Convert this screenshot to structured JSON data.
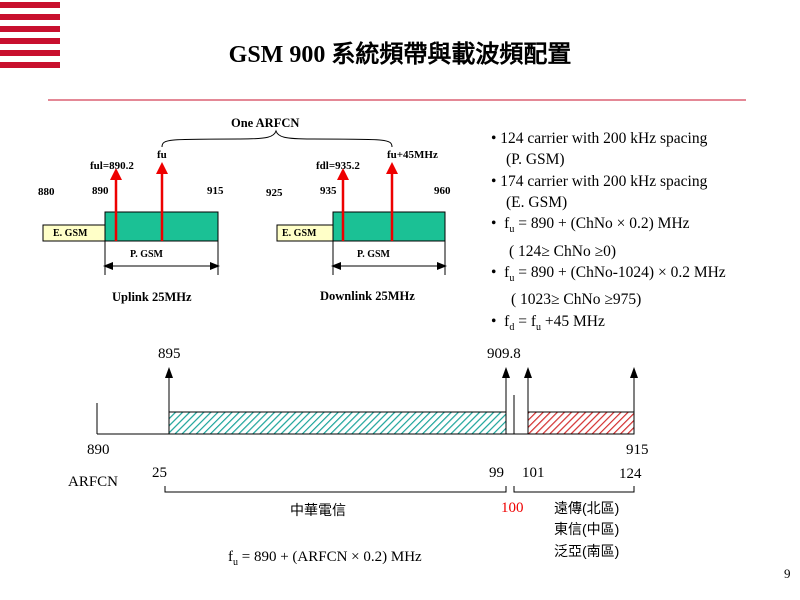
{
  "title": "GSM 900 系統頻帶與載波頻配置",
  "one_arfcn": "One ARFCN",
  "uplink": {
    "ful_label": "ful=890.2",
    "fu_label": "fu",
    "tick_880": "880",
    "tick_890": "890",
    "tick_915": "915",
    "egsm_label": "E. GSM",
    "pgsm_label": "P. GSM",
    "caption": "Uplink 25MHz"
  },
  "downlink": {
    "fdl_label": "fdl=935.2",
    "fu45_label": "fu+45MHz",
    "tick_925": "925",
    "tick_935": "935",
    "tick_960": "960",
    "egsm_label": "E. GSM",
    "pgsm_label": "P. GSM",
    "caption": "Downlink 25MHz"
  },
  "bullets": {
    "0": "• 124 carrier with 200 kHz spacing",
    "1": "(P. GSM)",
    "2": "• 174 carrier with 200 kHz spacing",
    "3": "(E. GSM)",
    "4_sub": "u",
    "4": " = 890 + (ChNo × 0.2) MHz",
    "5": "( 124≥ ChNo ≥0)",
    "6_sub": "u",
    "6": " = 890 + (ChNo-1024) × 0.2 MHz",
    "7": "( 1023≥ ChNo ≥975)",
    "8_sub": "d",
    "8": " = f",
    "9_sub": "u",
    "9": " +45 MHz"
  },
  "arfcn": {
    "freq_895": "895",
    "freq_909_8": "909.8",
    "freq_890": "890",
    "freq_915": "915",
    "label": "ARFCN",
    "ch_25": "25",
    "ch_99": "99",
    "ch_101": "101",
    "ch_124": "124",
    "ch_100": "100",
    "cht": "中華電信",
    "operators": [
      "遠傳(北區)",
      "東信(中區)",
      "泛亞(南區)"
    ]
  },
  "formula_sub": "u",
  "formula": " = 890 + (ARFCN × 0.2) MHz",
  "page_number": "9",
  "colors": {
    "accent_red": "#c8102e",
    "pgsm_green": "#1bc195",
    "egsm_yellow": "#ffffc8",
    "arrow_red": "#e00000",
    "hatch_teal": "#1aa39a",
    "hatch_red": "#d32f2f"
  }
}
